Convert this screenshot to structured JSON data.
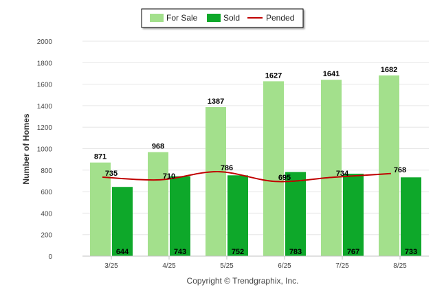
{
  "chart_data": {
    "type": "bar",
    "categories": [
      "3/25",
      "4/25",
      "5/25",
      "6/25",
      "7/25",
      "8/25"
    ],
    "series": [
      {
        "name": "For Sale",
        "kind": "bar",
        "color": "#a3e08c",
        "values": [
          871,
          968,
          1387,
          1627,
          1641,
          1682
        ]
      },
      {
        "name": "Sold",
        "kind": "bar",
        "color": "#0ea82a",
        "values": [
          644,
          743,
          752,
          783,
          767,
          733
        ]
      },
      {
        "name": "Pended",
        "kind": "line",
        "color": "#c00000",
        "values": [
          735,
          710,
          786,
          695,
          734,
          768
        ]
      }
    ],
    "title": "",
    "xlabel": "",
    "ylabel": "Number of Homes",
    "ylim": [
      0,
      2000
    ],
    "yticks": [
      0,
      200,
      400,
      600,
      800,
      1000,
      1200,
      1400,
      1600,
      1800,
      2000
    ],
    "grid": true,
    "legend_position": "top-center"
  },
  "footer": {
    "copyright": "Copyright © Trendgraphix, Inc."
  }
}
